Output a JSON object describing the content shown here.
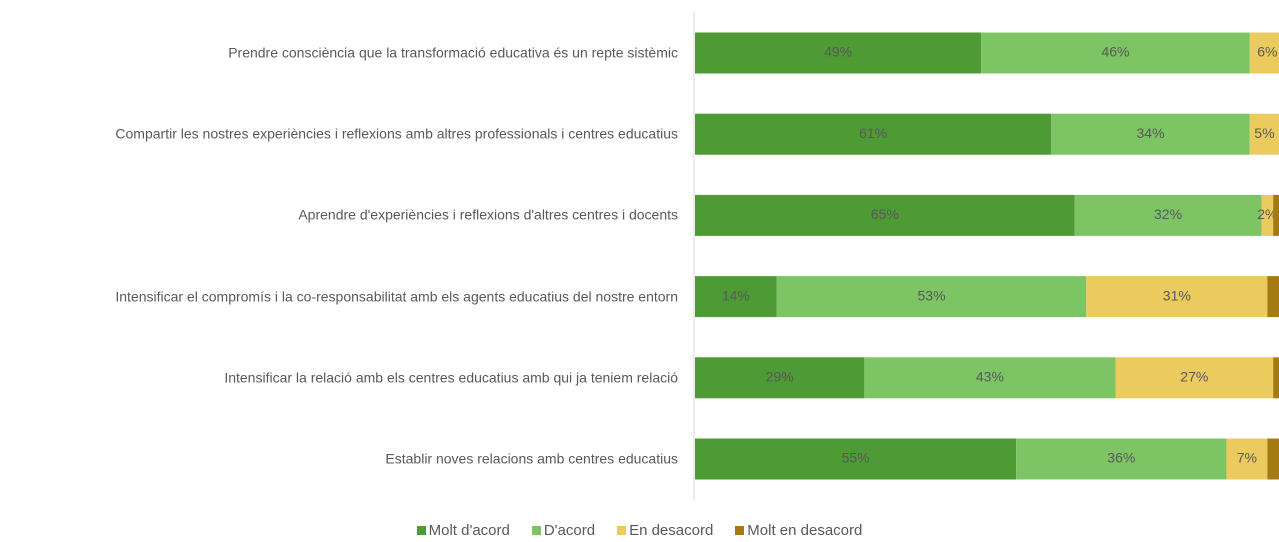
{
  "chart_data": {
    "type": "stacked-barh",
    "categories": [
      "Prendre consciència que la transformació educativa és un repte sistèmic",
      "Compartir les nostres experiències i reflexions amb altres professionals i centres educatius",
      "Aprendre d'experiències i reflexions d'altres centres i docents",
      "Intensificar el compromís i la co-responsabilitat amb els agents educatius del nostre entorn",
      "Intensificar la relació amb els centres educatius amb qui ja teniem relació",
      "Establir noves relacions amb centres educatius"
    ],
    "xlim": [
      0,
      100
    ],
    "series": [
      {
        "name": "Molt d'acord",
        "color": "#4e9a35",
        "values": [
          49,
          61,
          65,
          14,
          29,
          55
        ],
        "value_labels": [
          "49%",
          "61%",
          "65%",
          "14%",
          "29%",
          "55%"
        ]
      },
      {
        "name": "D'acord",
        "color": "#7cc464",
        "values": [
          46,
          34,
          32,
          53,
          43,
          36
        ],
        "value_labels": [
          "46%",
          "34%",
          "32%",
          "53%",
          "43%",
          "36%"
        ]
      },
      {
        "name": "En desacord",
        "color": "#ebcb5e",
        "values": [
          6,
          5,
          2,
          31,
          27,
          7
        ],
        "value_labels": [
          "6%",
          "5%",
          "2%",
          "31%",
          "27%",
          "7%"
        ]
      },
      {
        "name": "Molt en desacord",
        "color": "#a57a12",
        "values": [
          0,
          0,
          1,
          2,
          1,
          2
        ]
      }
    ],
    "legend": "bottom"
  }
}
